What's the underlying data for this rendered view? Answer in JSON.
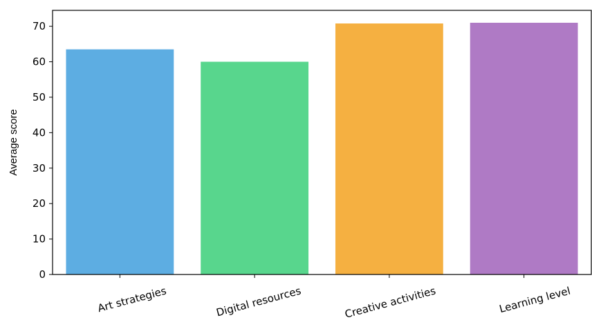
{
  "chart_data": {
    "type": "bar",
    "categories": [
      "Art strategies",
      "Digital resources",
      "Creative activities",
      "Learning level"
    ],
    "values": [
      63.5,
      60.0,
      70.8,
      71.0
    ],
    "colors": [
      "#5dade2",
      "#58d68d",
      "#f5b041",
      "#af7ac5"
    ],
    "title": "",
    "xlabel": "",
    "ylabel": "Average score",
    "ylim": [
      0,
      74.5
    ],
    "yticks": [
      0,
      10,
      20,
      30,
      40,
      50,
      60,
      70
    ],
    "grid": false,
    "legend": "none"
  }
}
